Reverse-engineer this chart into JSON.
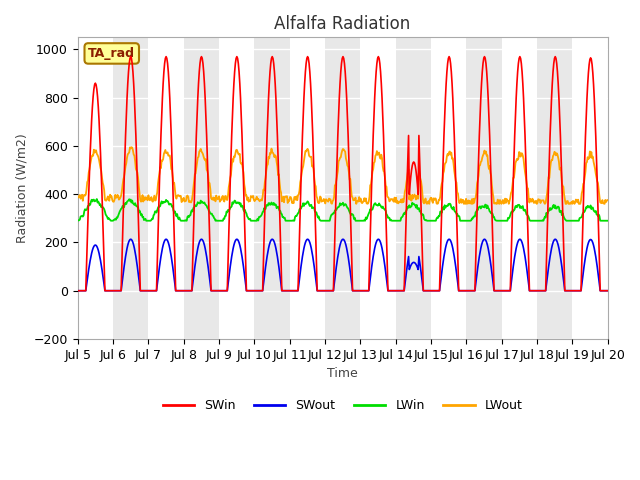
{
  "title": "Alfalfa Radiation",
  "ylabel": "Radiation (W/m2)",
  "xlabel": "Time",
  "ylim": [
    -200,
    1050
  ],
  "xtick_labels": [
    "Jul 5",
    "Jul 6",
    "Jul 7",
    "Jul 8",
    "Jul 9",
    "Jul 10",
    "Jul 11",
    "Jul 12",
    "Jul 13",
    "Jul 14",
    "Jul 15",
    "Jul 16",
    "Jul 17",
    "Jul 18",
    "Jul 19",
    "Jul 20"
  ],
  "annotation_text": "TA_rad",
  "annotation_bg": "#FFFF99",
  "annotation_border": "#AA7700",
  "colors": {
    "SWin": "#FF0000",
    "SWout": "#0000EE",
    "LWin": "#00DD00",
    "LWout": "#FFA500"
  },
  "background_color": "#E8E8E8",
  "grid_color": "#FFFFFF",
  "title_fontsize": 12,
  "axis_fontsize": 9,
  "legend_fontsize": 9
}
